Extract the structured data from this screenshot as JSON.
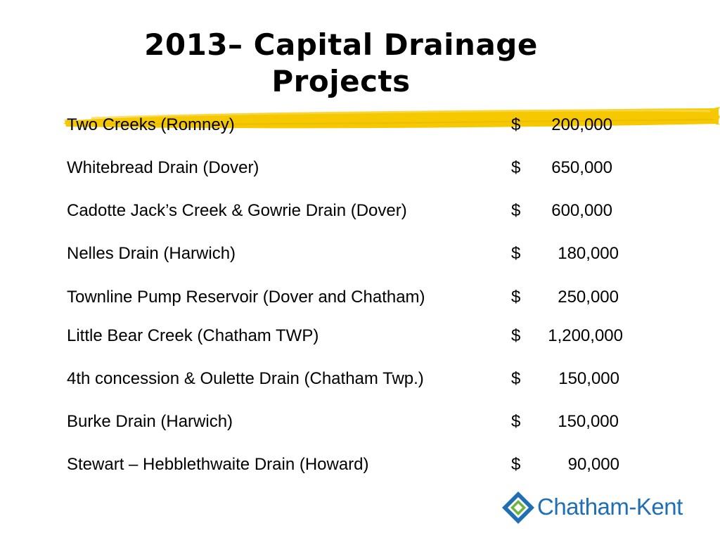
{
  "title_line1": "2013– Capital Drainage",
  "title_line2": "Projects",
  "projects": [
    {
      "name": "Two Creeks (Romney)",
      "currency": "$",
      "amount": "200,000"
    },
    {
      "name": "Whitebread Drain (Dover)",
      "currency": "$",
      "amount": "650,000"
    },
    {
      "name": "Cadotte Jack’s Creek & Gowrie Drain (Dover)",
      "currency": "$",
      "amount": "600,000"
    },
    {
      "name": "Nelles Drain (Harwich)",
      "currency": "$",
      "amount": "180,000"
    },
    {
      "name": "Townline Pump Reservoir (Dover and Chatham)",
      "currency": "$",
      "amount": "250,000"
    },
    {
      "name": "Little Bear Creek (Chatham TWP)",
      "currency": "$",
      "amount": "1,200,000"
    },
    {
      "name": "4th concession & Oulette Drain (Chatham Twp.)",
      "currency": "$",
      "amount": "150,000"
    },
    {
      "name": "Burke Drain (Harwich)",
      "currency": "$",
      "amount": "150,000"
    },
    {
      "name": "Stewart – Hebblethwaite Drain (Howard)",
      "currency": "$",
      "amount": "90,000"
    }
  ],
  "logo": {
    "text": "Chatham-Kent",
    "icon": "diamond-logo-icon",
    "color_blue": "#1f6fb6",
    "color_green": "#6db33f"
  },
  "colors": {
    "brush_stroke": "#f5c800"
  }
}
